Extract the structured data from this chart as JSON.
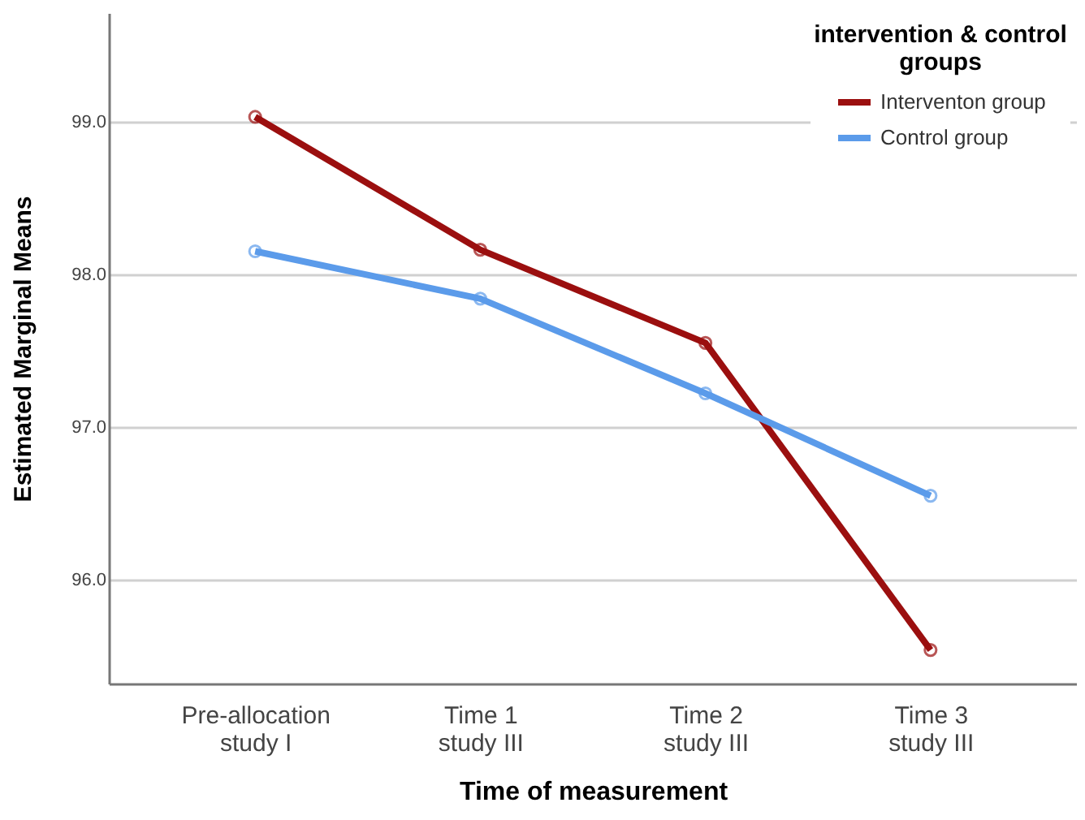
{
  "chart_data": {
    "type": "line",
    "xlabel": "Time of measurement",
    "ylabel": "Estimated Marginal Means",
    "legend_title": "intervention & control groups",
    "categories": [
      "Pre-allocation study I",
      "Time 1 study III",
      "Time 2 study III",
      "Time 3 study III"
    ],
    "series": [
      {
        "name": "Interventon group",
        "color": "#9b0f0f",
        "values": [
          99.03,
          98.16,
          97.55,
          95.54
        ]
      },
      {
        "name": "Control group",
        "color": "#5b9bea",
        "values": [
          98.15,
          97.84,
          97.22,
          96.55
        ]
      }
    ],
    "ylim": [
      95.32,
      99.71
    ],
    "yticks": [
      {
        "value": 96,
        "label": "96.0"
      },
      {
        "value": 97,
        "label": "97.0"
      },
      {
        "value": 98,
        "label": "98.0"
      },
      {
        "value": 99,
        "label": "99.0"
      }
    ],
    "grid": "y",
    "legend": "top right",
    "marker": "circle",
    "line_style": "solid"
  }
}
